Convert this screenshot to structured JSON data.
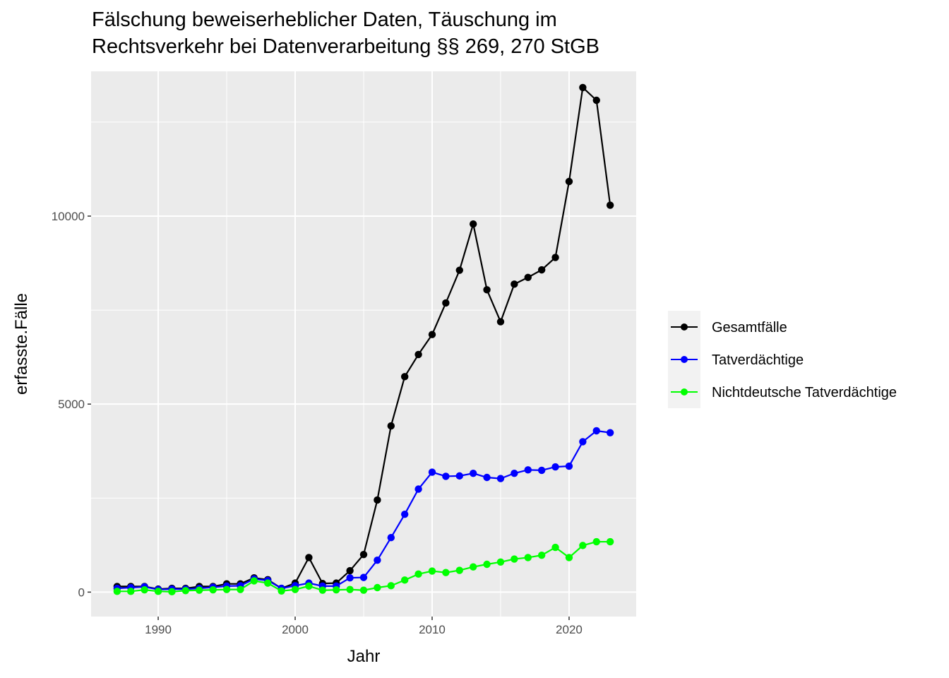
{
  "chart_data": {
    "type": "line",
    "title_lines": [
      "Fälschung beweiserheblicher Daten, Täuschung im",
      "Rechtsverkehr bei Datenverarbeitung §§ 269, 270 StGB"
    ],
    "xlabel": "Jahr",
    "ylabel": "erfasste.Fälle",
    "xlim": [
      1985.1,
      2024.9
    ],
    "ylim": [
      -650,
      13850
    ],
    "x_ticks": [
      1990,
      2000,
      2010,
      2020
    ],
    "y_ticks": [
      0,
      5000,
      10000
    ],
    "x_tick_labels": [
      "1990",
      "2000",
      "2010",
      "2020"
    ],
    "y_tick_labels": [
      "0",
      "5000",
      "10000"
    ],
    "x_minor": [
      1995,
      2005,
      2015
    ],
    "y_minor": [
      2500,
      7500,
      12500
    ],
    "grid": true,
    "legend_position": "right",
    "x": [
      1987,
      1988,
      1989,
      1990,
      1991,
      1992,
      1993,
      1994,
      1995,
      1996,
      1997,
      1998,
      1999,
      2000,
      2001,
      2002,
      2003,
      2004,
      2005,
      2006,
      2007,
      2008,
      2009,
      2010,
      2011,
      2012,
      2013,
      2014,
      2015,
      2016,
      2017,
      2018,
      2019,
      2020,
      2021,
      2022,
      2023
    ],
    "series": [
      {
        "name": "Gesamtfälle",
        "color": "#000000",
        "values": [
          150,
          150,
          150,
          80,
          100,
          100,
          150,
          150,
          220,
          220,
          380,
          330,
          100,
          240,
          920,
          230,
          240,
          570,
          1000,
          2450,
          4420,
          5730,
          6320,
          6850,
          7690,
          8560,
          9790,
          8040,
          7190,
          8190,
          8370,
          8570,
          8900,
          10920,
          13420,
          13080,
          10290
        ]
      },
      {
        "name": "Tatverdächtige",
        "color": "#0000ff",
        "values": [
          100,
          120,
          140,
          70,
          80,
          80,
          100,
          130,
          160,
          170,
          350,
          310,
          100,
          170,
          240,
          160,
          160,
          380,
          390,
          850,
          1450,
          2070,
          2740,
          3190,
          3080,
          3090,
          3160,
          3050,
          3020,
          3160,
          3250,
          3240,
          3330,
          3350,
          4000,
          4290,
          4240
        ]
      },
      {
        "name": "Nichtdeutsche Tatverdächtige",
        "color": "#00ff00",
        "values": [
          20,
          20,
          60,
          20,
          10,
          40,
          50,
          60,
          70,
          70,
          300,
          240,
          30,
          70,
          160,
          50,
          60,
          70,
          50,
          120,
          170,
          320,
          480,
          560,
          520,
          580,
          670,
          740,
          800,
          880,
          920,
          980,
          1190,
          920,
          1240,
          1340,
          1340
        ]
      }
    ]
  }
}
